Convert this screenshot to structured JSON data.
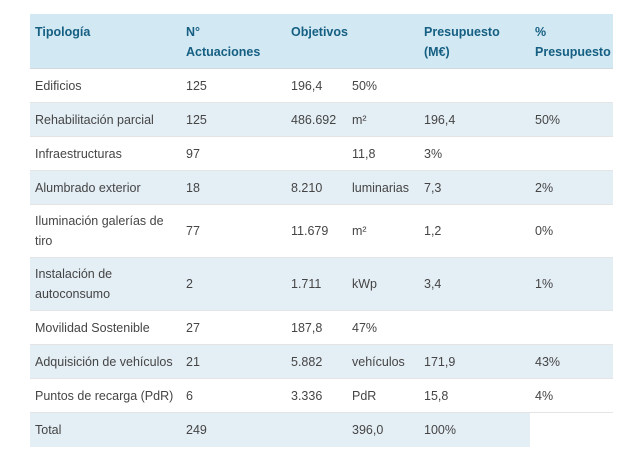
{
  "colors": {
    "header_bg": "#d2e8f3",
    "header_text": "#155f82",
    "row_alt_bg": "#e4eef5",
    "row_bg": "#ffffff",
    "body_text": "#454545",
    "row_border": "#e4e4e4",
    "page_bg": "#ffffff"
  },
  "chart_data": {
    "type": "table",
    "headers": [
      "Tipología",
      "N° Actuaciones",
      "Objetivos",
      "Presupuesto (M€)",
      "% Presupuesto"
    ],
    "rows": [
      {
        "cells": [
          "Edificios",
          "125",
          "196,4",
          "50%",
          "",
          ""
        ]
      },
      {
        "cells": [
          "Rehabilitación parcial",
          "125",
          "486.692",
          "m²",
          "196,4",
          "50%"
        ]
      },
      {
        "cells": [
          "Infraestructuras",
          "97",
          "",
          "11,8",
          "3%",
          ""
        ]
      },
      {
        "cells": [
          "Alumbrado exterior",
          "18",
          "8.210",
          "luminarias",
          "7,3",
          "2%"
        ]
      },
      {
        "cells": [
          "Iluminación galerías de tiro",
          "77",
          "11.679",
          "m²",
          "1,2",
          "0%"
        ]
      },
      {
        "cells": [
          "Instalación de autoconsumo",
          "2",
          "1.711",
          "kWp",
          "3,4",
          "1%"
        ]
      },
      {
        "cells": [
          "Movilidad Sostenible",
          "27",
          "187,8",
          "47%",
          "",
          ""
        ]
      },
      {
        "cells": [
          "Adquisición de vehículos",
          "21",
          "5.882",
          "vehículos",
          "171,9",
          "43%"
        ]
      },
      {
        "cells": [
          "Puntos de recarga (PdR)",
          "6",
          "3.336",
          "PdR",
          "15,8",
          "4%"
        ]
      },
      {
        "cells": [
          "Total",
          "249",
          "",
          "396,0",
          "100%",
          ""
        ]
      }
    ]
  }
}
